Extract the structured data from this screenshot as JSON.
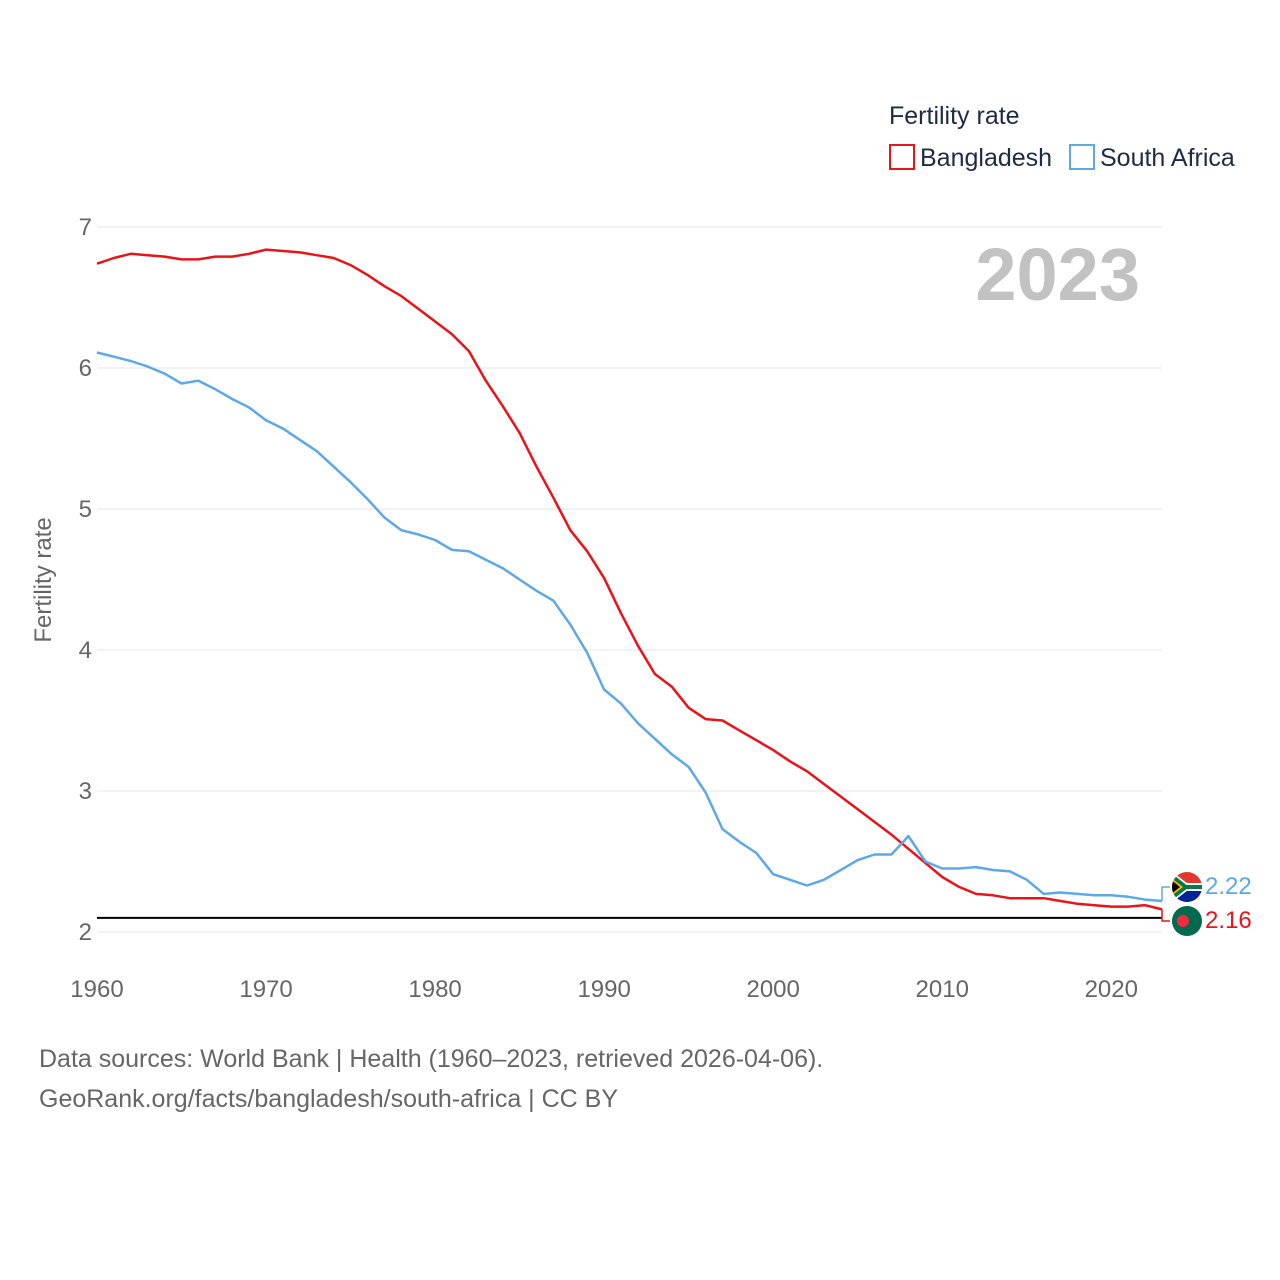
{
  "colors": {
    "bangladesh": "#e8141a",
    "south_africa": "#5ea8e6",
    "gridline": "#e6e6e6",
    "reference_line": "#000000",
    "year_watermark": "#c2c2c2"
  },
  "chart_data": {
    "type": "line",
    "title": "Fertility rate",
    "ylabel": "Fertility rate",
    "xlabel": "",
    "xlim": [
      1960,
      2023
    ],
    "ylim": [
      2,
      7
    ],
    "x_ticks": [
      "1960",
      "1970",
      "1980",
      "1990",
      "2000",
      "2010",
      "2020"
    ],
    "y_ticks": [
      "2",
      "3",
      "4",
      "5",
      "6",
      "7"
    ],
    "year_display": "2023",
    "reference_line": 2.1,
    "legend": {
      "title": "Fertility rate",
      "position": "top-right"
    },
    "x": [
      1960,
      1961,
      1962,
      1963,
      1964,
      1965,
      1966,
      1967,
      1968,
      1969,
      1970,
      1971,
      1972,
      1973,
      1974,
      1975,
      1976,
      1977,
      1978,
      1979,
      1980,
      1981,
      1982,
      1983,
      1984,
      1985,
      1986,
      1987,
      1988,
      1989,
      1990,
      1991,
      1992,
      1993,
      1994,
      1995,
      1996,
      1997,
      1998,
      1999,
      2000,
      2001,
      2002,
      2003,
      2004,
      2005,
      2006,
      2007,
      2008,
      2009,
      2010,
      2011,
      2012,
      2013,
      2014,
      2015,
      2016,
      2017,
      2018,
      2019,
      2020,
      2021,
      2022,
      2023
    ],
    "series": [
      {
        "name": "Bangladesh",
        "end_label": "2.16",
        "values": [
          6.74,
          6.78,
          6.81,
          6.8,
          6.79,
          6.77,
          6.77,
          6.79,
          6.79,
          6.81,
          6.84,
          6.83,
          6.82,
          6.8,
          6.78,
          6.73,
          6.66,
          6.58,
          6.51,
          6.42,
          6.33,
          6.24,
          6.12,
          5.91,
          5.73,
          5.54,
          5.3,
          5.08,
          4.85,
          4.7,
          4.51,
          4.26,
          4.03,
          3.83,
          3.74,
          3.59,
          3.51,
          3.5,
          3.43,
          3.36,
          3.29,
          3.21,
          3.14,
          3.05,
          2.96,
          2.87,
          2.78,
          2.69,
          2.59,
          2.49,
          2.39,
          2.32,
          2.27,
          2.26,
          2.24,
          2.24,
          2.24,
          2.22,
          2.2,
          2.19,
          2.18,
          2.18,
          2.19,
          2.16
        ]
      },
      {
        "name": "South Africa",
        "end_label": "2.22",
        "values": [
          6.11,
          6.08,
          6.05,
          6.01,
          5.96,
          5.89,
          5.91,
          5.85,
          5.78,
          5.72,
          5.63,
          5.57,
          5.49,
          5.41,
          5.3,
          5.19,
          5.07,
          4.94,
          4.85,
          4.82,
          4.78,
          4.71,
          4.7,
          4.64,
          4.58,
          4.5,
          4.42,
          4.35,
          4.18,
          3.98,
          3.72,
          3.62,
          3.48,
          3.37,
          3.26,
          3.17,
          2.99,
          2.73,
          2.64,
          2.56,
          2.41,
          2.37,
          2.33,
          2.37,
          2.44,
          2.51,
          2.55,
          2.55,
          2.68,
          2.5,
          2.45,
          2.45,
          2.46,
          2.44,
          2.43,
          2.37,
          2.27,
          2.28,
          2.27,
          2.26,
          2.26,
          2.25,
          2.23,
          2.22
        ]
      }
    ]
  },
  "footer": {
    "sources": "Data sources: World Bank | Health (1960–2023, retrieved 2026-04-06).",
    "attribution": "GeoRank.org/facts/bangladesh/south-africa | CC BY"
  }
}
